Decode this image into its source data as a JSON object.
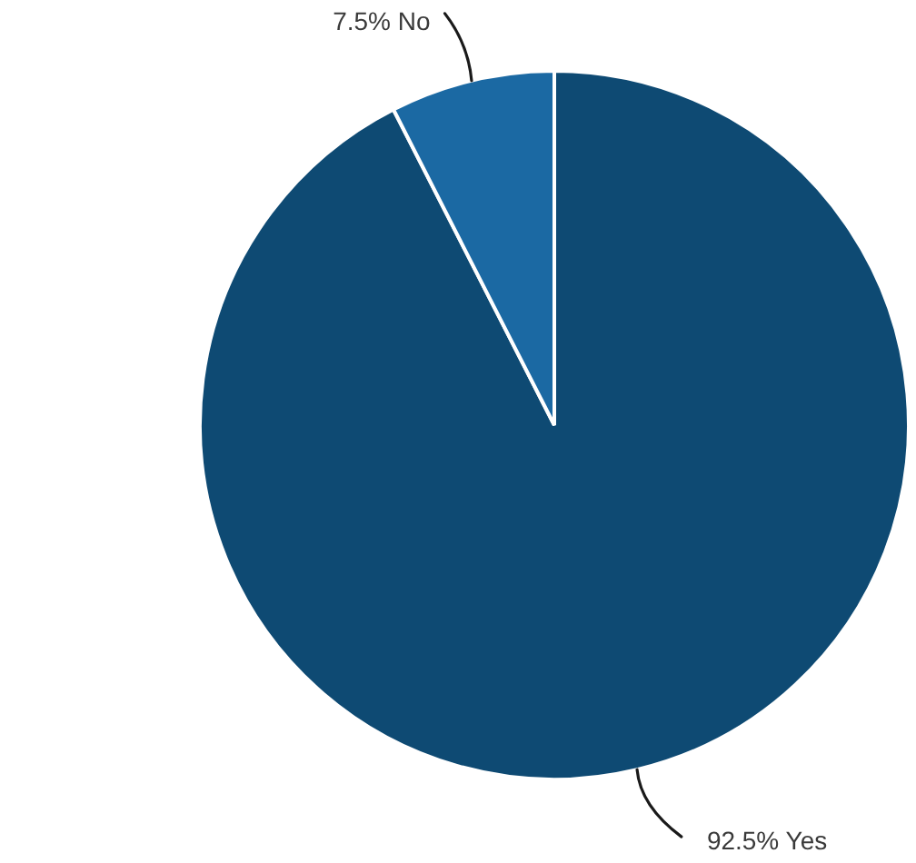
{
  "chart_data": {
    "type": "pie",
    "categories": [
      "Yes",
      "No"
    ],
    "values": [
      92.5,
      7.5
    ],
    "value_labels": [
      "92.5%",
      "7.5%"
    ],
    "colors": [
      "#0e4a73",
      "#1b69a3"
    ]
  }
}
